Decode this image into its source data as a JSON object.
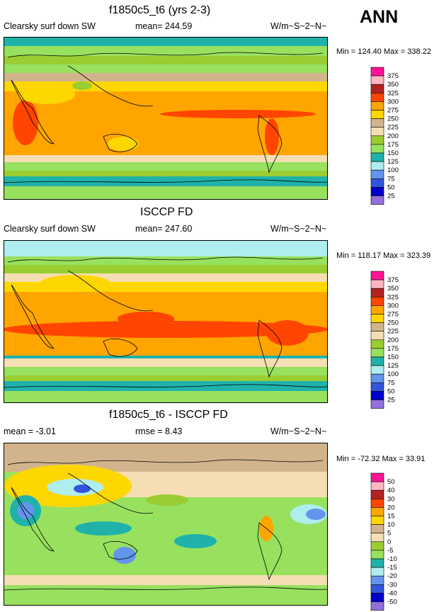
{
  "season": "ANN",
  "chart_data": [
    {
      "type": "heatmap",
      "title": "f1850c5_t6 (yrs 2-3)",
      "variable": "Clearsky surf down SW",
      "mean_text": "mean= 244.59",
      "units": "W/m~S~2~N~",
      "minmax_text": "Min = 124.40 Max = 338.22",
      "min": 124.4,
      "max": 338.22,
      "levels": [
        "375",
        "350",
        "325",
        "300",
        "275",
        "250",
        "225",
        "200",
        "175",
        "150",
        "125",
        "100",
        "75",
        "50",
        "25"
      ],
      "colors": [
        "#ff1493",
        "#ffb6c1",
        "#b22222",
        "#ff4500",
        "#ffa500",
        "#ffd700",
        "#d2b48c",
        "#f5deb3",
        "#9acd32",
        "#98e15f",
        "#20b2aa",
        "#afeeee",
        "#6495ed",
        "#3355dd",
        "#0000cd",
        "#9370db"
      ]
    },
    {
      "type": "heatmap",
      "title": "ISCCP FD",
      "variable": "Clearsky surf down SW",
      "mean_text": "mean= 247.60",
      "units": "W/m~S~2~N~",
      "minmax_text": "Min = 118.17 Max = 323.39",
      "min": 118.17,
      "max": 323.39,
      "levels": [
        "375",
        "350",
        "325",
        "300",
        "275",
        "250",
        "225",
        "200",
        "175",
        "150",
        "125",
        "100",
        "75",
        "50",
        "25"
      ],
      "colors": [
        "#ff1493",
        "#ffb6c1",
        "#b22222",
        "#ff4500",
        "#ffa500",
        "#ffd700",
        "#d2b48c",
        "#f5deb3",
        "#9acd32",
        "#98e15f",
        "#20b2aa",
        "#afeeee",
        "#6495ed",
        "#3355dd",
        "#0000cd",
        "#9370db"
      ]
    },
    {
      "type": "heatmap",
      "title": "f1850c5_t6 - ISCCP FD",
      "variable": "mean =  -3.01",
      "mean_text": "rmse =   8.43",
      "units": "W/m~S~2~N~",
      "minmax_text": "Min = -72.32 Max =  33.91",
      "min": -72.32,
      "max": 33.91,
      "levels": [
        "50",
        "40",
        "30",
        "20",
        "15",
        "10",
        "5",
        "0",
        "-5",
        "-10",
        "-15",
        "-20",
        "-30",
        "-40",
        "-50"
      ],
      "colors": [
        "#ff1493",
        "#ffb6c1",
        "#b22222",
        "#ff4500",
        "#ffa500",
        "#ffd700",
        "#d2b48c",
        "#f5deb3",
        "#9acd32",
        "#98e15f",
        "#20b2aa",
        "#afeeee",
        "#6495ed",
        "#3355dd",
        "#0000cd",
        "#9370db"
      ]
    }
  ]
}
